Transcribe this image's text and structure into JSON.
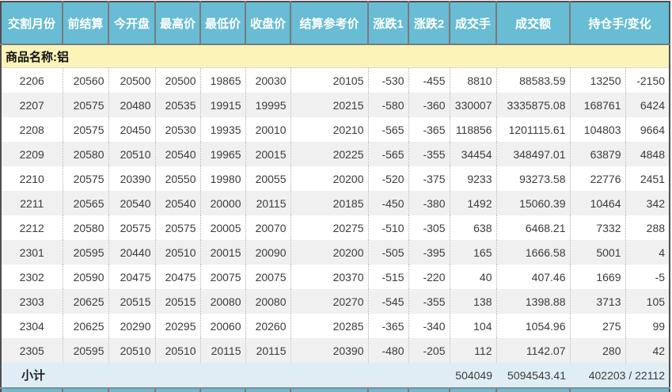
{
  "table": {
    "section_label": "商品名称:铝",
    "columns": [
      {
        "key": "delivery-month",
        "label": "交割月份"
      },
      {
        "key": "prev-settlement",
        "label": "前结算"
      },
      {
        "key": "open",
        "label": "今开盘"
      },
      {
        "key": "high",
        "label": "最高价"
      },
      {
        "key": "low",
        "label": "最低价"
      },
      {
        "key": "close",
        "label": "收盘价"
      },
      {
        "key": "settlement-ref",
        "label": "结算参考价"
      },
      {
        "key": "change1",
        "label": "涨跌1"
      },
      {
        "key": "change2",
        "label": "涨跌2"
      },
      {
        "key": "volume",
        "label": "成交手"
      },
      {
        "key": "turnover",
        "label": "成交额"
      },
      {
        "key": "open-interest-change",
        "label": "持仓手/变化"
      }
    ],
    "rows": [
      [
        "2206",
        "20560",
        "20500",
        "20500",
        "19865",
        "20030",
        "20105",
        "-530",
        "-455",
        "8810",
        "88583.59",
        "13250",
        "-2150"
      ],
      [
        "2207",
        "20575",
        "20480",
        "20535",
        "19915",
        "19995",
        "20215",
        "-580",
        "-360",
        "330007",
        "3335875.08",
        "168761",
        "6424"
      ],
      [
        "2208",
        "20575",
        "20450",
        "20530",
        "19935",
        "20010",
        "20210",
        "-565",
        "-365",
        "118856",
        "1201115.61",
        "104803",
        "9664"
      ],
      [
        "2209",
        "20580",
        "20510",
        "20540",
        "19965",
        "20015",
        "20225",
        "-565",
        "-355",
        "34454",
        "348497.01",
        "63879",
        "4848"
      ],
      [
        "2210",
        "20575",
        "20390",
        "20550",
        "19980",
        "20055",
        "20200",
        "-520",
        "-375",
        "9233",
        "93273.58",
        "22776",
        "2451"
      ],
      [
        "2211",
        "20565",
        "20540",
        "20540",
        "20000",
        "20115",
        "20185",
        "-450",
        "-380",
        "1492",
        "15060.39",
        "10464",
        "342"
      ],
      [
        "2212",
        "20580",
        "20575",
        "20575",
        "20005",
        "20070",
        "20275",
        "-510",
        "-305",
        "638",
        "6468.21",
        "7332",
        "288"
      ],
      [
        "2301",
        "20595",
        "20440",
        "20510",
        "20015",
        "20090",
        "20200",
        "-505",
        "-395",
        "165",
        "1666.58",
        "5001",
        "4"
      ],
      [
        "2302",
        "20590",
        "20475",
        "20475",
        "20075",
        "20075",
        "20370",
        "-515",
        "-220",
        "40",
        "407.46",
        "1669",
        "-5"
      ],
      [
        "2303",
        "20625",
        "20515",
        "20515",
        "20080",
        "20080",
        "20270",
        "-545",
        "-355",
        "138",
        "1398.88",
        "3713",
        "105"
      ],
      [
        "2304",
        "20625",
        "20290",
        "20295",
        "20060",
        "20260",
        "20285",
        "-365",
        "-340",
        "104",
        "1054.96",
        "275",
        "99"
      ],
      [
        "2305",
        "20595",
        "20510",
        "20510",
        "20115",
        "20115",
        "20390",
        "-480",
        "-205",
        "112",
        "1142.07",
        "280",
        "42"
      ]
    ],
    "subtotal": {
      "label": "小计",
      "volume": "504049",
      "turnover": "5094543.41",
      "open_interest_change": "402203 / 22112"
    }
  },
  "colors": {
    "header_bg": "#68bcd4",
    "header_fg": "#ffffff",
    "header_sep": "#7a7a7a",
    "section_bg": "#fcf3b8",
    "stripe_bg": "#f0f0f0",
    "subtotal_bg": "#dfeef5",
    "data_fg": "#3b3b3b",
    "dotted_sep": "#b0b0b0",
    "outer_border": "#4f4f4f"
  }
}
